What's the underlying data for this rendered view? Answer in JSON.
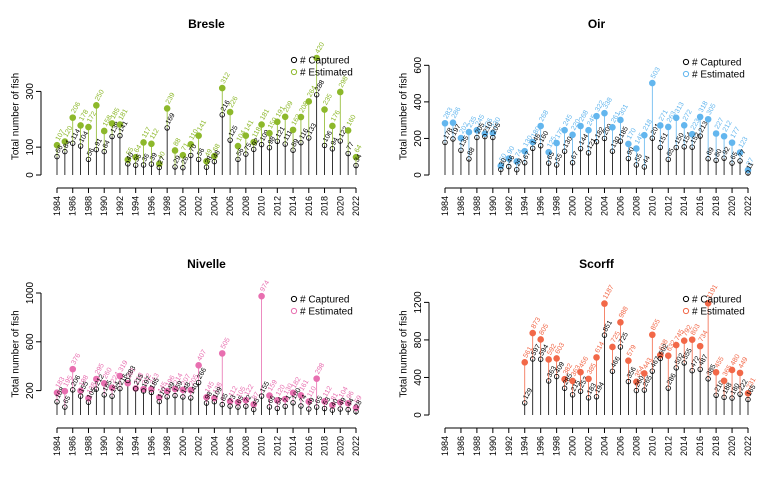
{
  "colors": {
    "axis": "#000000",
    "captured": "#000000"
  },
  "legend_labels": {
    "captured": "# Captured",
    "estimated": "# Estimated"
  },
  "chart_data": [
    {
      "type": "scatter",
      "title": "Bresle",
      "ylabel": "Total number of fish",
      "xlim": [
        1984,
        2022
      ],
      "ylim": [
        0,
        420
      ],
      "yticks": [
        0,
        100,
        300
      ],
      "xticks": [
        1984,
        1986,
        1988,
        1990,
        1992,
        1994,
        1996,
        1998,
        2000,
        2002,
        2004,
        2006,
        2008,
        2010,
        2012,
        2014,
        2016,
        2018,
        2020,
        2022
      ],
      "color": "#8DB82B",
      "legend_position": "top-right",
      "years": [
        1984,
        1985,
        1986,
        1987,
        1988,
        1989,
        1990,
        1991,
        1992,
        1993,
        1994,
        1995,
        1996,
        1997,
        1998,
        1999,
        2000,
        2001,
        2002,
        2003,
        2004,
        2005,
        2006,
        2007,
        2008,
        2009,
        2010,
        2011,
        2012,
        2013,
        2014,
        2015,
        2016,
        2017,
        2018,
        2019,
        2020,
        2021,
        2022
      ],
      "captured": [
        66,
        84,
        114,
        104,
        56,
        91,
        84,
        138,
        141,
        40,
        35,
        36,
        39,
        27,
        169,
        29,
        26,
        70,
        56,
        28,
        48,
        216,
        125,
        56,
        75,
        92,
        109,
        98,
        121,
        111,
        89,
        116,
        133,
        288,
        106,
        94,
        122,
        77,
        34
      ],
      "estimated": [
        107,
        120,
        206,
        178,
        172,
        250,
        158,
        185,
        181,
        55,
        64,
        117,
        112,
        40,
        239,
        88,
        71,
        110,
        141,
        49,
        68,
        312,
        226,
        104,
        141,
        118,
        181,
        150,
        191,
        209,
        162,
        208,
        264,
        420,
        235,
        176,
        298,
        160,
        64
      ]
    },
    {
      "type": "scatter",
      "title": "Oir",
      "ylabel": "Total number of fish",
      "xlim": [
        1984,
        2022
      ],
      "ylim": [
        0,
        640
      ],
      "yticks": [
        0,
        200,
        400,
        600
      ],
      "xticks": [
        1984,
        1986,
        1988,
        1990,
        1992,
        1994,
        1996,
        1998,
        2000,
        2002,
        2004,
        2006,
        2008,
        2010,
        2012,
        2014,
        2016,
        2018,
        2020,
        2022
      ],
      "color": "#63B6EE",
      "legend_position": "top-right",
      "years": [
        1984,
        1985,
        1986,
        1987,
        1988,
        1989,
        1990,
        1991,
        1992,
        1993,
        1994,
        1995,
        1996,
        1997,
        1998,
        1999,
        2000,
        2001,
        2002,
        2003,
        2004,
        2005,
        2006,
        2007,
        2008,
        2009,
        2010,
        2011,
        2012,
        2013,
        2014,
        2015,
        2016,
        2017,
        2018,
        2019,
        2020,
        2021,
        2022
      ],
      "captured": [
        178,
        197,
        135,
        88,
        205,
        210,
        205,
        30,
        46,
        29,
        67,
        146,
        160,
        65,
        55,
        130,
        67,
        144,
        121,
        182,
        200,
        130,
        185,
        90,
        55,
        44,
        201,
        151,
        85,
        150,
        154,
        152,
        213,
        89,
        80,
        92,
        65,
        77,
        11
      ],
      "estimated": [
        283,
        286,
        202,
        235,
        245,
        226,
        230,
        50,
        90,
        74,
        130,
        180,
        268,
        125,
        175,
        245,
        220,
        268,
        245,
        322,
        338,
        261,
        301,
        170,
        145,
        218,
        503,
        271,
        263,
        313,
        272,
        223,
        318,
        305,
        227,
        212,
        177,
        123,
        27
      ]
    },
    {
      "type": "scatter",
      "title": "Nivelle",
      "ylabel": "Total number of fish",
      "xlim": [
        1984,
        2022
      ],
      "ylim": [
        0,
        1000
      ],
      "yticks": [
        200,
        600,
        1000
      ],
      "xticks": [
        1984,
        1986,
        1988,
        1990,
        1992,
        1994,
        1996,
        1998,
        2000,
        2002,
        2004,
        2006,
        2008,
        2010,
        2012,
        2014,
        2016,
        2018,
        2020,
        2022
      ],
      "color": "#E86FB0",
      "legend_position": "top-right",
      "years": [
        1984,
        1985,
        1986,
        1987,
        1988,
        1989,
        1990,
        1991,
        1992,
        1993,
        1994,
        1995,
        1996,
        1997,
        1998,
        1999,
        2000,
        2001,
        2002,
        2003,
        2004,
        2005,
        2006,
        2007,
        2008,
        2009,
        2010,
        2011,
        2012,
        2013,
        2014,
        2015,
        2016,
        2017,
        2018,
        2019,
        2020,
        2021,
        2022
      ],
      "captured": [
        108,
        65,
        206,
        155,
        105,
        212,
        165,
        154,
        216,
        283,
        215,
        197,
        185,
        110,
        149,
        159,
        148,
        140,
        266,
        98,
        109,
        85,
        73,
        65,
        72,
        45,
        155,
        66,
        54,
        71,
        100,
        74,
        49,
        65,
        53,
        40,
        49,
        44,
        28
      ],
      "estimated": [
        183,
        195,
        376,
        198,
        138,
        295,
        260,
        224,
        319,
        261,
        218,
        212,
        213,
        145,
        196,
        214,
        207,
        205,
        407,
        145,
        138,
        505,
        112,
        105,
        122,
        87,
        974,
        159,
        120,
        130,
        182,
        161,
        110,
        298,
        112,
        81,
        104,
        96,
        59
      ]
    },
    {
      "type": "scatter",
      "title": "Scorff",
      "ylabel": "Total number of fish",
      "xlim": [
        1984,
        2022
      ],
      "ylim": [
        0,
        1300
      ],
      "yticks": [
        0,
        400,
        800,
        1200
      ],
      "xticks": [
        1984,
        1986,
        1988,
        1990,
        1992,
        1994,
        1996,
        1998,
        2000,
        2002,
        2004,
        2006,
        2008,
        2010,
        2012,
        2014,
        2016,
        2018,
        2020,
        2022
      ],
      "color": "#F26848",
      "legend_position": "top-right",
      "years": [
        1994,
        1995,
        1996,
        1997,
        1998,
        1999,
        2000,
        2001,
        2002,
        2003,
        2004,
        2005,
        2006,
        2007,
        2008,
        2009,
        2010,
        2011,
        2012,
        2013,
        2014,
        2015,
        2016,
        2017,
        2018,
        2019,
        2020,
        2021,
        2022
      ],
      "captured": [
        129,
        597,
        594,
        363,
        409,
        285,
        215,
        253,
        183,
        194,
        851,
        466,
        725,
        356,
        260,
        265,
        467,
        602,
        286,
        502,
        555,
        472,
        487,
        385,
        210,
        188,
        180,
        222,
        165
      ],
      "estimated": [
        561,
        873,
        805,
        592,
        603,
        382,
        363,
        456,
        385,
        614,
        1187,
        725,
        988,
        579,
        354,
        443,
        855,
        638,
        632,
        745,
        792,
        803,
        734,
        1191,
        455,
        365,
        480,
        449,
        231
      ]
    }
  ]
}
